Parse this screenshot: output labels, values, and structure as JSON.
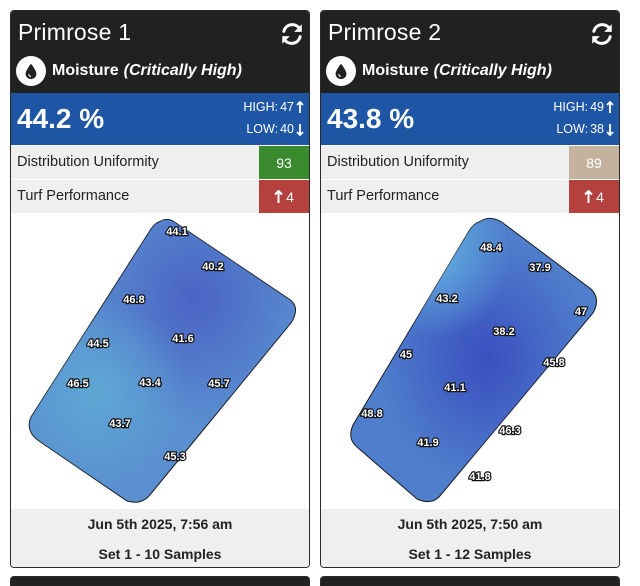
{
  "cards": [
    {
      "title": "Primrose 1",
      "metric_name": "Moisture",
      "metric_status": "(Critically High)",
      "value": "44.2 %",
      "high_label": "HIGH:",
      "high_value": "47",
      "low_label": "LOW:",
      "low_value": "40",
      "rows": [
        {
          "label": "Distribution Uniformity",
          "value": "93",
          "color": "#3a8a2e",
          "arrow": ""
        },
        {
          "label": "Turf Performance",
          "value": "4",
          "color": "#b5413e",
          "arrow": "up"
        }
      ],
      "samples": [
        "44.1",
        "40.2",
        "46.8",
        "44.5",
        "41.6",
        "46.5",
        "43.4",
        "45.7",
        "43.7",
        "45.3"
      ],
      "date": "Jun 5th 2025, 7:56 am",
      "set": "Set 1 - 10 Samples"
    },
    {
      "title": "Primrose 2",
      "metric_name": "Moisture",
      "metric_status": "(Critically High)",
      "value": "43.8 %",
      "high_label": "HIGH:",
      "high_value": "49",
      "low_label": "LOW:",
      "low_value": "38",
      "rows": [
        {
          "label": "Distribution Uniformity",
          "value": "89",
          "color": "#c5b29e",
          "arrow": ""
        },
        {
          "label": "Turf Performance",
          "value": "4",
          "color": "#b5413e",
          "arrow": "up"
        }
      ],
      "samples": [
        "48.4",
        "37.9",
        "43.2",
        "47",
        "38.2",
        "45",
        "45.8",
        "41.1",
        "48.8",
        "46.3",
        "41.9",
        "41.8"
      ],
      "date": "Jun 5th 2025, 7:50 am",
      "set": "Set 1 - 12 Samples"
    }
  ],
  "icons": {
    "refresh": "refresh-icon",
    "moisture": "water-drop-icon",
    "high_arrow": "arrow-up-icon",
    "low_arrow": "arrow-down-icon"
  }
}
